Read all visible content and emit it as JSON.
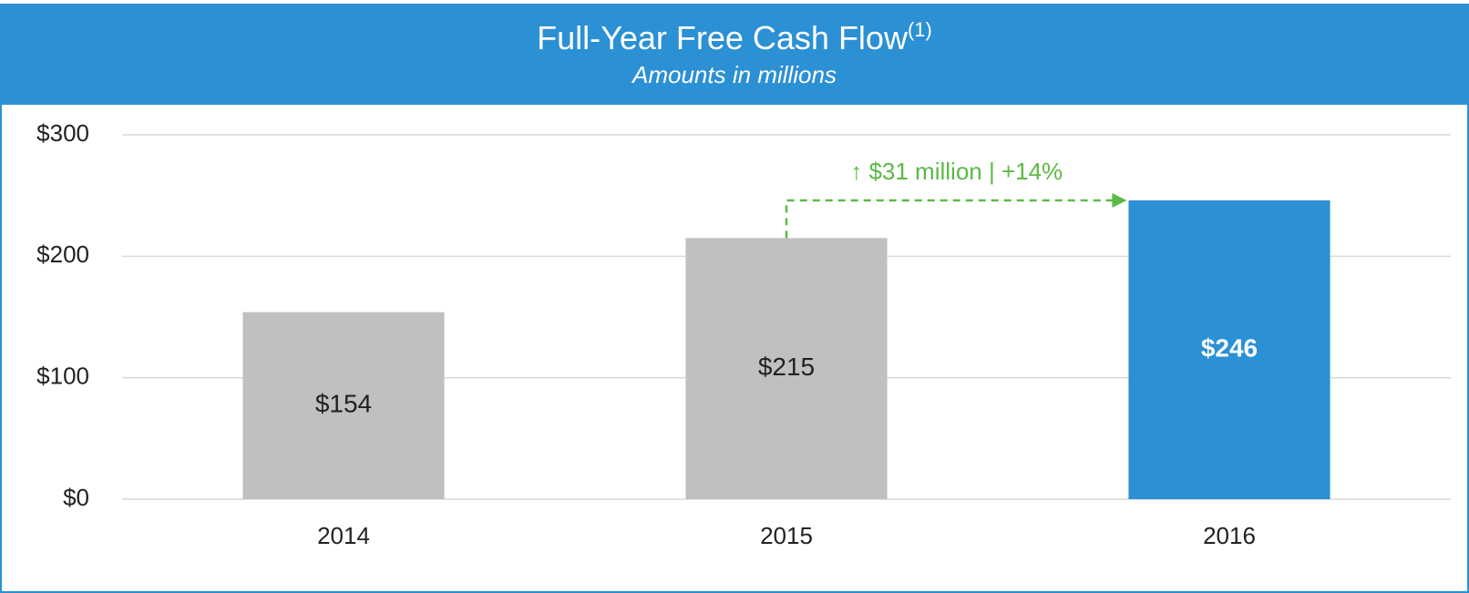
{
  "chart_data": {
    "type": "bar",
    "title": "Full-Year Free Cash Flow",
    "title_superscript": "(1)",
    "subtitle": "Amounts in millions",
    "categories": [
      "2014",
      "2015",
      "2016"
    ],
    "values": [
      154,
      215,
      246
    ],
    "value_labels": [
      "$154",
      "$215",
      "$246"
    ],
    "colors": [
      "#c0c0c0",
      "#c0c0c0",
      "#2b90d4"
    ],
    "ylim": [
      0,
      300
    ],
    "yticks": [
      {
        "value": 0,
        "label": "$0"
      },
      {
        "value": 100,
        "label": "$100"
      },
      {
        "value": 200,
        "label": "$200"
      },
      {
        "value": 300,
        "label": "$300"
      }
    ],
    "grid": true,
    "annotation": "↑ $31 million | +14%",
    "annotation_color": "#5cb946"
  }
}
